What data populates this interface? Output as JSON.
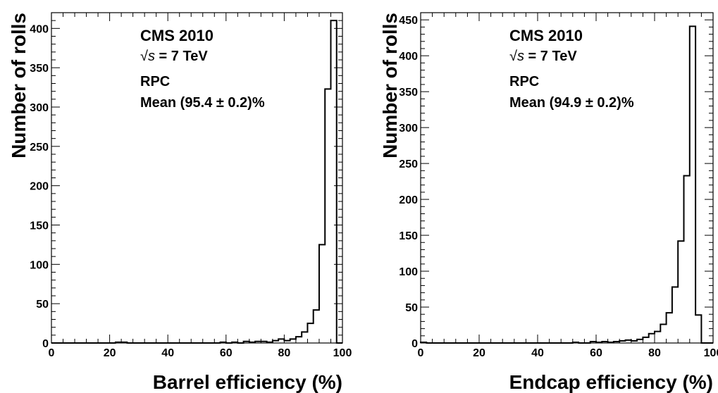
{
  "chart_data": [
    {
      "type": "histogram",
      "xlabel": "Barrel efficiency (%)",
      "ylabel": "Number of rolls",
      "xlim": [
        0,
        100
      ],
      "ylim": [
        0,
        420
      ],
      "xticks": [
        "0",
        "20",
        "40",
        "60",
        "80",
        "100"
      ],
      "yticks": [
        "0",
        "50",
        "100",
        "150",
        "200",
        "250",
        "300",
        "350",
        "400"
      ],
      "annotations": {
        "experiment": "CMS 2010",
        "energy_prefix": "√s",
        "energy_suffix": " = 7 TeV",
        "detector": "RPC",
        "mean": "Mean (95.4 ± 0.2)%"
      },
      "bin_width": 2,
      "bin_edges_start": 0,
      "values": [
        0,
        0,
        0,
        0,
        0,
        0,
        0,
        0,
        0,
        0,
        0,
        1,
        1,
        0,
        0,
        0,
        0,
        0,
        0,
        0,
        0,
        0,
        0,
        0,
        0,
        0,
        0,
        0,
        0,
        1,
        0,
        1,
        0,
        2,
        1,
        2,
        2,
        1,
        3,
        5,
        3,
        5,
        8,
        14,
        25,
        42,
        125,
        323,
        410,
        0
      ],
      "grid": false,
      "legend": "none"
    },
    {
      "type": "histogram",
      "xlabel": "Endcap efficiency (%)",
      "ylabel": "Number of rolls",
      "xlim": [
        0,
        100
      ],
      "ylim": [
        0,
        460
      ],
      "xticks": [
        "0",
        "20",
        "40",
        "60",
        "80",
        "100"
      ],
      "yticks": [
        "0",
        "50",
        "100",
        "150",
        "200",
        "250",
        "300",
        "350",
        "400",
        "450"
      ],
      "annotations": {
        "experiment": "CMS 2010",
        "energy_prefix": "√s",
        "energy_suffix": " = 7 TeV",
        "detector": "RPC",
        "mean": "Mean (94.9 ± 0.2)%"
      },
      "bin_width": 2,
      "bin_edges_start": 0,
      "values": [
        1,
        0,
        0,
        0,
        0,
        0,
        0,
        0,
        0,
        0,
        0,
        0,
        0,
        0,
        0,
        0,
        0,
        0,
        0,
        0,
        0,
        0,
        0,
        0,
        0,
        0,
        1,
        0,
        0,
        2,
        1,
        2,
        1,
        2,
        3,
        4,
        3,
        5,
        8,
        13,
        16,
        26,
        42,
        78,
        142,
        233,
        441,
        39,
        0,
        0
      ],
      "grid": false,
      "legend": "none"
    }
  ]
}
